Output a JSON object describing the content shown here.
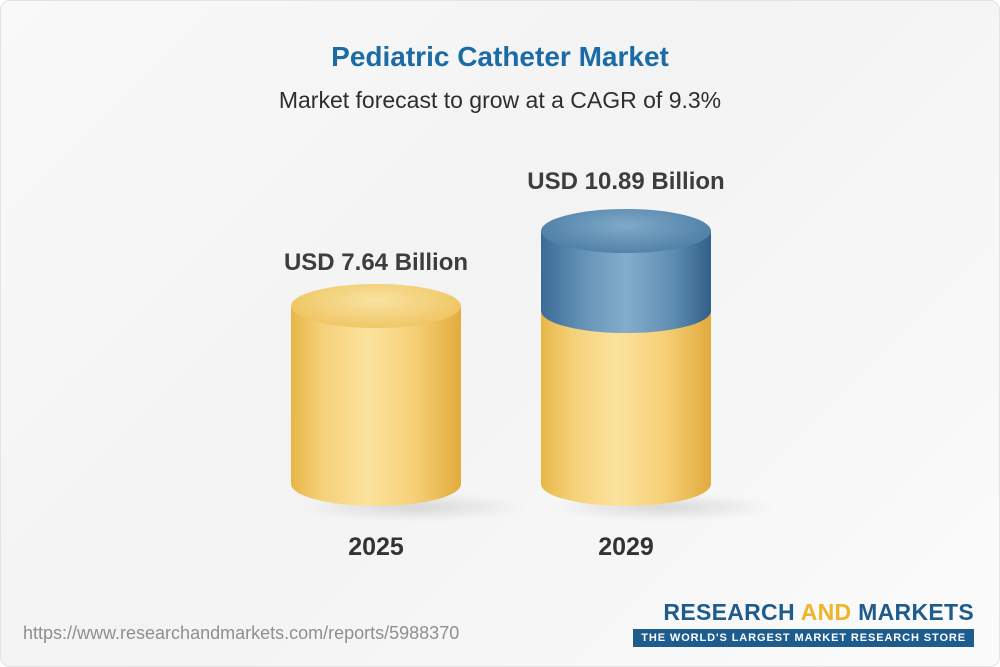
{
  "title": "Pediatric Catheter Market",
  "subtitle": "Market forecast to grow at a CAGR of 9.3%",
  "chart_data": {
    "type": "bar",
    "categories": [
      "2025",
      "2029"
    ],
    "values": [
      7.64,
      10.89
    ],
    "value_labels": [
      "USD 7.64 Billion",
      "USD 10.89 Billion"
    ],
    "unit": "USD Billion",
    "title": "Pediatric Catheter Market",
    "subtitle": "Market forecast to grow at a CAGR of 9.3%",
    "cagr_percent": 9.3,
    "legend": "none",
    "colors": {
      "base_cylinder": "#F2C459",
      "growth_segment": "#4F81A9"
    },
    "notes": "3D cylinder bars; 2029 bar is a stacked cylinder with a yellow base equal to 2025 level and a blue top segment representing growth"
  },
  "bars": [
    {
      "year": "2025",
      "label": "USD 7.64 Billion"
    },
    {
      "year": "2029",
      "label": "USD 10.89 Billion"
    }
  ],
  "footer": {
    "url": "https://www.researchandmarkets.com/reports/5988370",
    "logo": {
      "part1": "RESEARCH",
      "part2": "AND",
      "part3": "MARKETS",
      "tagline": "THE WORLD'S LARGEST MARKET RESEARCH STORE"
    },
    "colors": {
      "logo_blue": "#1E5C8E",
      "logo_yellow": "#F0B429"
    }
  },
  "colors": {
    "title_blue": "#1A6BA6",
    "subtitle_gray": "#2E2E2E"
  }
}
